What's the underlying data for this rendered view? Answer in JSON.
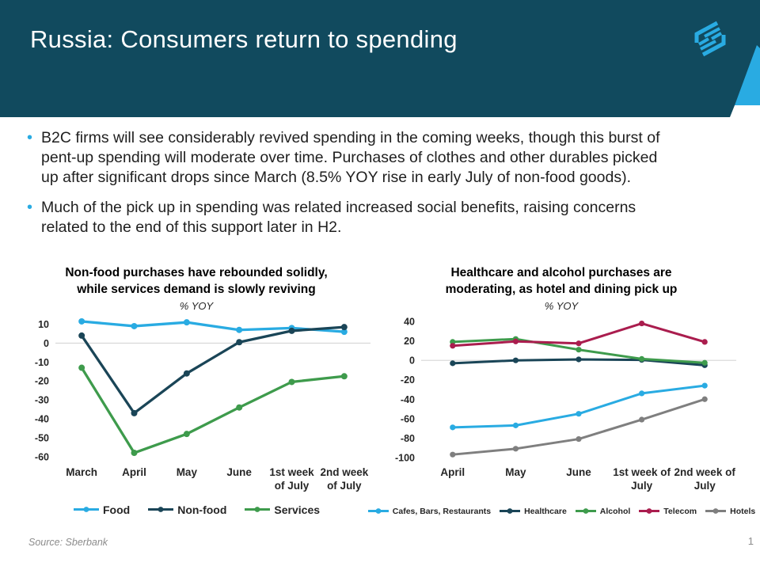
{
  "slide": {
    "header": {
      "title": "Russia: Consumers return to spending",
      "background_color": "#114A5E",
      "accent_color": "#29ABE2",
      "logo_icon": "bank-hex-logo-icon"
    },
    "bullets": {
      "marker": "•",
      "items": [
        {
          "text": "B2C firms will see considerably revived spending in the coming weeks, though this burst of\npent-up spending will moderate over time. Purchases of clothes and other durables picked\nup after significant drops since March (8.5% YOY rise in early July of non-food goods)."
        },
        {
          "text": "Much of the pick up in spending was related increased social benefits, raising concerns\nrelated to the end of this support later in H2."
        }
      ]
    },
    "footer": {
      "source": "Source: Sberbank",
      "page_number": "1"
    }
  },
  "chart_data": [
    {
      "type": "line",
      "title": "Non-food purchases have rebounded solidly,\nwhile services demand is slowly reviving",
      "subtitle": "% YOY",
      "categories": [
        "March",
        "April",
        "May",
        "June",
        "1st week\nof July",
        "2nd week\nof July"
      ],
      "series": [
        {
          "name": "Food",
          "color": "#29ABE2",
          "values": [
            11.5,
            9,
            11,
            7,
            8,
            6
          ]
        },
        {
          "name": "Non-food",
          "color": "#1A4557",
          "values": [
            4,
            -37,
            -16,
            0.5,
            6.5,
            8.5
          ]
        },
        {
          "name": "Services",
          "color": "#3E9B4C",
          "values": [
            -13,
            -58,
            -48,
            -34,
            -20.5,
            -17.5
          ]
        }
      ],
      "yticks": [
        10,
        0,
        -10,
        -20,
        -30,
        -40,
        -50,
        -60
      ],
      "ylim": [
        -63,
        14
      ],
      "xlabel": "",
      "ylabel": "% YOY",
      "grid": "zero-line-only",
      "legend_position": "bottom"
    },
    {
      "type": "line",
      "title": "Healthcare and alcohol purchases are\nmoderating, as hotel and dining pick up",
      "subtitle": "% YOY",
      "categories": [
        "April",
        "May",
        "June",
        "1st week of\nJuly",
        "2nd week of\nJuly"
      ],
      "series": [
        {
          "name": "Cafes, Bars, Restaurants",
          "color": "#29ABE2",
          "values": [
            -69,
            -67,
            -55,
            -34,
            -26
          ]
        },
        {
          "name": "Healthcare",
          "color": "#1A4557",
          "values": [
            -3,
            0,
            1,
            0.5,
            -5
          ]
        },
        {
          "name": "Alcohol",
          "color": "#3E9B4C",
          "values": [
            19,
            22,
            11,
            1.5,
            -2.5
          ]
        },
        {
          "name": "Telecom",
          "color": "#AA1D4E",
          "values": [
            15,
            19.5,
            17.5,
            38,
            19
          ]
        },
        {
          "name": "Hotels",
          "color": "#7F7F7F",
          "values": [
            -97,
            -91,
            -81,
            -61,
            -40
          ]
        }
      ],
      "yticks": [
        40,
        20,
        0,
        -20,
        -40,
        -60,
        -80,
        -100
      ],
      "ylim": [
        -105,
        45
      ],
      "xlabel": "",
      "ylabel": "% YOY",
      "grid": "zero-line-only",
      "legend_position": "bottom"
    }
  ]
}
